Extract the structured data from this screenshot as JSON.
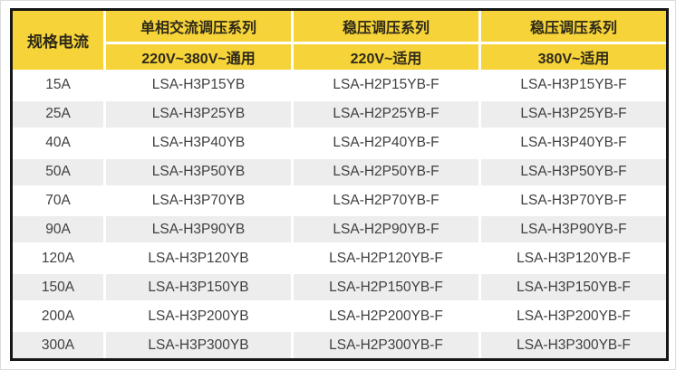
{
  "table": {
    "corner_header": "规格电流",
    "groups": [
      {
        "series": "单相交流调压系列",
        "voltage": "220V~380V~通用"
      },
      {
        "series": "稳压调压系列",
        "voltage": "220V~适用"
      },
      {
        "series": "稳压调压系列",
        "voltage": "380V~适用"
      }
    ],
    "rows": [
      {
        "current": "15A",
        "models": [
          "LSA-H3P15YB",
          "LSA-H2P15YB-F",
          "LSA-H3P15YB-F"
        ]
      },
      {
        "current": "25A",
        "models": [
          "LSA-H3P25YB",
          "LSA-H2P25YB-F",
          "LSA-H3P25YB-F"
        ]
      },
      {
        "current": "40A",
        "models": [
          "LSA-H3P40YB",
          "LSA-H2P40YB-F",
          "LSA-H3P40YB-F"
        ]
      },
      {
        "current": "50A",
        "models": [
          "LSA-H3P50YB",
          "LSA-H2P50YB-F",
          "LSA-H3P50YB-F"
        ]
      },
      {
        "current": "70A",
        "models": [
          "LSA-H3P70YB",
          "LSA-H2P70YB-F",
          "LSA-H3P70YB-F"
        ]
      },
      {
        "current": "90A",
        "models": [
          "LSA-H3P90YB",
          "LSA-H2P90YB-F",
          "LSA-H3P90YB-F"
        ]
      },
      {
        "current": "120A",
        "models": [
          "LSA-H3P120YB",
          "LSA-H2P120YB-F",
          "LSA-H3P120YB-F"
        ]
      },
      {
        "current": "150A",
        "models": [
          "LSA-H3P150YB",
          "LSA-H2P150YB-F",
          "LSA-H3P150YB-F"
        ]
      },
      {
        "current": "200A",
        "models": [
          "LSA-H3P200YB",
          "LSA-H2P200YB-F",
          "LSA-H3P200YB-F"
        ]
      },
      {
        "current": "300A",
        "models": [
          "LSA-H3P300YB",
          "LSA-H2P300YB-F",
          "LSA-H3P300YB-F"
        ]
      }
    ]
  },
  "colors": {
    "header_bg": "#F6D338",
    "row_alt_bg": "#EDEDED",
    "border": "#161616",
    "body_text": "#3f3f3f",
    "header_text": "#2e2a1a"
  }
}
